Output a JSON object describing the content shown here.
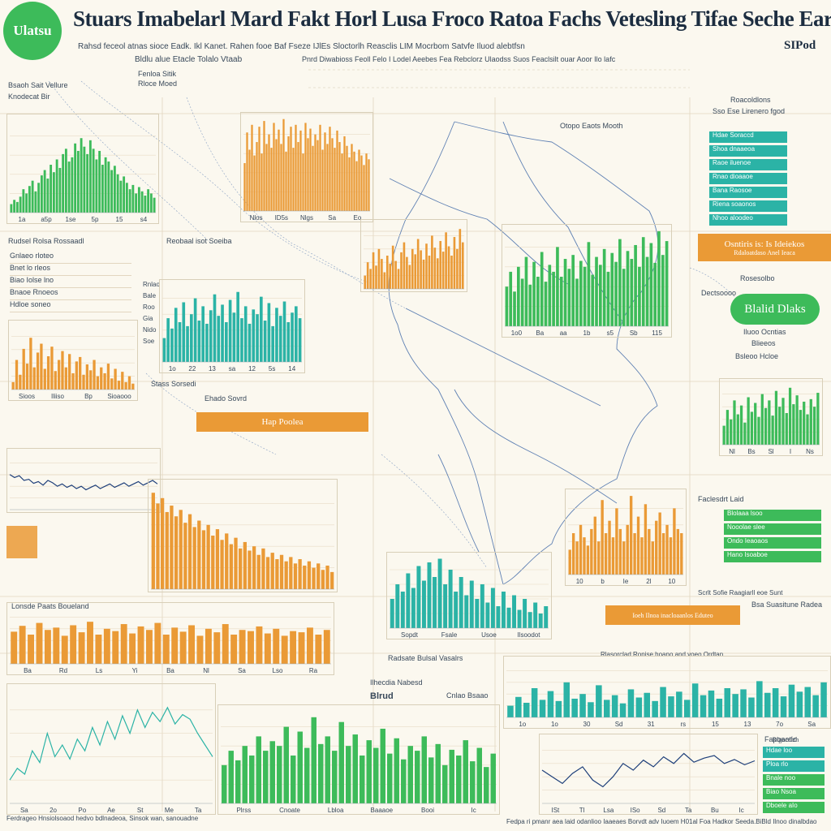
{
  "header": {
    "logo_text": "Ulatsu",
    "title": "Stuars Imabelarl Mard Fakt Horl Lusa Froco Ratoa Fachs Vetesling Tifae Seche Earlioe",
    "top_right": "SIPod",
    "subtitle_1": "Rahsd feceol atnas sioce Eadk. Ikl Kanet. Rahen fooe Baf Fseze IJlEs Sloctorlh Reasclis LIM Mocrbom Satvfe Iluod alebtfsn",
    "subtitle_2": "Bldlu alue Etacle Tolalo Vtaab",
    "subtitle_3": "Pnrd Diwabioss Feoll Felo I Lodel Aeebes Fea Rebclorz Ulaodss Suos Feaclsilt ouar Aoor Ilo lafc"
  },
  "annotations": {
    "left_header_1": "Fenloa Sitik",
    "left_header_2": "Rloce Moed",
    "left_label_1": "Bsaoh Sait Vellure",
    "left_label_2": "Knodecat Bir",
    "mid_label_1": "Rudsel Rolsa Rossaadl",
    "mid_label_2": "Reobaal isot Soeiba",
    "mid_label_3": "Stass Sorsedi",
    "mid_label_4": "Ehado Sovrd",
    "mid_label_5": "Lonsde Paats Boueland",
    "bottom_label_1": "Radsate Bulsal Vasalrs",
    "bottom_label_2": "Ilhecdia Nabesd",
    "bottom_label_3": "Blrud",
    "bottom_label_4": "Cnlao Bsaao",
    "map_label": "Otopo Eaots Mooth",
    "right_label_1": "Roacoldlons",
    "right_label_2": "Sso Ese Lirenero fgod",
    "right_label_3": "Dectsoooo",
    "right_label_4": "Rosesolbo",
    "right_label_5": "Bsleoo Hcloe",
    "right_label_6": "Blieeos",
    "right_label_7": "Faclesdrt Laid",
    "right_label_8": "Scrlt Sofie Raagiarll eoe Sunt",
    "right_label_9": "Bsa Suasitune Radea",
    "right_label_10": "Rlasorclad Ronise hoano and voeo Ordtan",
    "right_label_11": "Fapoaotio",
    "footer_1": "Ferdrageo Hnsiolsoaod hedvo bdlnadeoa, Sinsok wan, sanouadne",
    "footer_2": "Fedpa ri pmanr aea laid odanlioo Iaaeaes Borvdt adv Iuoem H01al Foa Hadkor Seeda.BiBld Ilnoo dinalbdao"
  },
  "pills": {
    "hap_label": "Hap Poolea",
    "orange_right": "Osntiris is: Is Ideiekos",
    "orange_right_sub": "Rdaloatdaso Anel Ieaca",
    "green_right": "Blalid Dlaks",
    "green_right_sub": "Iluoo Ocntias",
    "orange_bottom": "Ioeh Ilnoa inacloaanlos Eduteo",
    "teal_bottom_right": "Rlgoeelzh"
  },
  "legends": {
    "teal_top": [
      "Hdae Soraccd",
      "Shoa dnaaeoa",
      "Raoe iluenoe",
      "Rnao dioaaoe",
      "Bana Raosoe",
      "Riena soaonos",
      "Nhoo aloodeo"
    ],
    "green_mid": [
      "Blolaaa lsoo",
      "Nooolae slee",
      "Ondo Ieaoaos",
      "Hano Isoaboe"
    ],
    "teal_bottom": [
      "Hdae loo",
      "Ploa rlo",
      "Bnale noo",
      "Biao Nsoa",
      "Dboele aIo"
    ],
    "left_list": [
      "Gnlaeo rloteo",
      "Bnet lo rleos",
      "Biao Iolse lno",
      "Bnaoe Rnoeos",
      "Hdloe soneo"
    ],
    "mini_list": [
      "Rnlao",
      "Bale",
      "Roo",
      "Gia",
      "Nido",
      "Soe"
    ]
  },
  "colors": {
    "green": "#3dbb5a",
    "orange": "#ea9a36",
    "teal": "#2bb3a6",
    "navy": "#1e3f7a",
    "grid": "#e8dcc6"
  },
  "chart_data": [
    {
      "id": "c1",
      "type": "bar",
      "color": "#3dbb5a",
      "title": "",
      "values": [
        8,
        12,
        10,
        15,
        22,
        18,
        25,
        30,
        20,
        28,
        35,
        40,
        32,
        45,
        38,
        50,
        42,
        55,
        60,
        48,
        52,
        65,
        58,
        70,
        62,
        55,
        68,
        60,
        50,
        58,
        45,
        52,
        48,
        40,
        44,
        36,
        30,
        34,
        28,
        22,
        26,
        18,
        24,
        20,
        16,
        22,
        18,
        14
      ],
      "xticks": [
        "1a",
        "a5p",
        "1se",
        "5p",
        "15",
        "s4"
      ],
      "ylim": [
        0,
        90
      ]
    },
    {
      "id": "c2",
      "type": "bar",
      "color": "#ea9a36",
      "title": "",
      "values": [
        50,
        82,
        64,
        90,
        58,
        72,
        88,
        60,
        94,
        70,
        80,
        66,
        92,
        75,
        85,
        70,
        96,
        62,
        78,
        88,
        66,
        90,
        72,
        84,
        60,
        92,
        76,
        86,
        68,
        80,
        74,
        90,
        64,
        82,
        70,
        88,
        76,
        66,
        84,
        72,
        60,
        78,
        68,
        56,
        70,
        62,
        52,
        64,
        58,
        48,
        60,
        54
      ],
      "xticks": [
        "Nlos",
        "ID5s",
        "Nlgs",
        "Sa",
        "Eo"
      ],
      "ylim": [
        0,
        100
      ]
    },
    {
      "id": "c3",
      "type": "bar",
      "color": "#ea9a36",
      "title": "",
      "values": [
        20,
        40,
        30,
        55,
        35,
        60,
        45,
        25,
        50,
        38,
        65,
        42,
        30,
        55,
        70,
        48,
        36,
        60,
        52,
        75,
        58,
        44,
        68,
        50,
        80,
        62,
        46,
        72,
        56,
        85,
        64,
        50,
        78,
        60,
        90,
        70
      ],
      "xticks": [],
      "ylim": [
        0,
        100
      ]
    },
    {
      "id": "c4",
      "type": "bar",
      "color": "#3dbb5a",
      "title": "",
      "values": [
        40,
        55,
        35,
        60,
        48,
        70,
        42,
        65,
        50,
        75,
        45,
        62,
        55,
        80,
        50,
        68,
        58,
        72,
        48,
        66,
        60,
        85,
        52,
        70,
        62,
        78,
        55,
        74,
        65,
        88,
        58,
        76,
        68,
        82,
        60,
        90,
        70,
        84,
        64,
        96,
        72,
        86
      ],
      "xticks": [
        "1o0",
        "Ba",
        "aa",
        "1b",
        "s5",
        "Sb",
        "115"
      ],
      "ylim": [
        0,
        100
      ]
    },
    {
      "id": "c5",
      "type": "bar",
      "color": "#2bb3a6",
      "title": "",
      "values": [
        30,
        55,
        42,
        68,
        50,
        75,
        45,
        60,
        80,
        52,
        70,
        48,
        65,
        85,
        58,
        72,
        50,
        78,
        62,
        88,
        55,
        70,
        48,
        66,
        60,
        82,
        52,
        74,
        45,
        68,
        58,
        76,
        50,
        62,
        70,
        55
      ],
      "xticks": [
        "1o",
        "22",
        "13",
        "sa",
        "12",
        "5s",
        "14"
      ],
      "ylim": [
        0,
        100
      ]
    },
    {
      "id": "c6",
      "type": "bar",
      "color": "#ea9a36",
      "title": "",
      "values": [
        10,
        40,
        20,
        55,
        35,
        70,
        30,
        50,
        62,
        28,
        45,
        58,
        25,
        40,
        52,
        30,
        48,
        22,
        38,
        44,
        20,
        34,
        26,
        40,
        18,
        30,
        22,
        35,
        15,
        28,
        12,
        24,
        10,
        18,
        8
      ],
      "xticks": [
        "Sioos",
        "Iliiso",
        "Bp",
        "Sioaooo"
      ],
      "ylim": [
        0,
        90
      ]
    },
    {
      "id": "c7",
      "type": "bar",
      "color": "#3dbb5a",
      "title": "",
      "values": [
        30,
        55,
        40,
        70,
        48,
        62,
        35,
        75,
        52,
        66,
        44,
        80,
        58,
        70,
        46,
        85,
        60,
        74,
        50,
        90,
        64,
        78,
        55,
        68,
        48,
        72,
        60,
        82
      ],
      "xticks": [
        "Nl",
        "Bs",
        "Sl",
        "I",
        "Ns"
      ],
      "ylim": [
        0,
        100
      ]
    },
    {
      "id": "c8",
      "type": "line",
      "color": "#1e3f7a",
      "title": "",
      "values": [
        60,
        55,
        58,
        50,
        52,
        45,
        48,
        42,
        50,
        46,
        40,
        44,
        38,
        42,
        36,
        40,
        34,
        38,
        42,
        36,
        40,
        44,
        38,
        42,
        46,
        40,
        44,
        48,
        42,
        46,
        50,
        44
      ],
      "xticks": [],
      "ylim": [
        0,
        100
      ]
    },
    {
      "id": "c9",
      "type": "bar",
      "color": "#ea9a36",
      "title": "",
      "values": [
        90,
        80,
        85,
        72,
        78,
        68,
        74,
        62,
        70,
        58,
        64,
        55,
        60,
        50,
        56,
        46,
        52,
        42,
        48,
        38,
        44,
        36,
        40,
        32,
        38,
        30,
        34,
        28,
        32,
        26,
        30,
        24,
        28,
        22,
        26,
        20,
        24,
        18,
        22,
        16
      ],
      "xticks": [],
      "ylim": [
        0,
        100
      ]
    },
    {
      "id": "c10",
      "type": "bar",
      "color": "#ea9a36",
      "title": "",
      "values": [
        30,
        50,
        40,
        60,
        45,
        35,
        55,
        70,
        40,
        90,
        50,
        65,
        45,
        80,
        55,
        40,
        60,
        95,
        50,
        70,
        45,
        85,
        55,
        40,
        65,
        75,
        50,
        60,
        45,
        80,
        55,
        50
      ],
      "xticks": [
        "10",
        "b",
        "Ie",
        "2l",
        "10"
      ],
      "ylim": [
        0,
        100
      ]
    },
    {
      "id": "c11",
      "type": "bar",
      "color": "#2bb3a6",
      "title": "",
      "values": [
        40,
        60,
        50,
        75,
        55,
        85,
        65,
        90,
        70,
        95,
        60,
        80,
        50,
        70,
        45,
        65,
        40,
        60,
        35,
        55,
        30,
        50,
        28,
        45,
        25,
        40,
        22,
        35,
        20,
        30
      ],
      "xticks": [
        "Sopdt",
        "Fsale",
        "Usoe",
        "Ilsoodot"
      ],
      "ylim": [
        0,
        100
      ]
    },
    {
      "id": "c12",
      "type": "bar",
      "color": "#ea9a36",
      "title": "",
      "values": [
        55,
        65,
        50,
        70,
        58,
        62,
        48,
        66,
        54,
        72,
        50,
        60,
        56,
        68,
        52,
        64,
        58,
        70,
        50,
        62,
        55,
        66,
        48,
        60,
        54,
        68,
        50,
        58,
        56,
        64,
        52,
        60,
        48,
        56,
        54,
        62,
        50,
        58
      ],
      "xticks": [
        "Ba",
        "Rd",
        "Ls",
        "Yi",
        "Ba",
        "Nl",
        "Sa",
        "Lso",
        "Ra"
      ],
      "ylim": [
        0,
        100
      ]
    },
    {
      "id": "c13",
      "type": "bar",
      "color": "#2bb3a6",
      "title": "",
      "values": [
        20,
        35,
        25,
        50,
        30,
        45,
        28,
        60,
        32,
        40,
        26,
        55,
        30,
        38,
        24,
        48,
        34,
        42,
        28,
        52,
        36,
        44,
        30,
        58,
        38,
        46,
        32,
        50,
        40,
        48,
        34,
        62,
        42,
        50,
        36,
        56,
        44,
        52,
        38,
        60
      ],
      "xticks": [
        "1o",
        "1o",
        "30",
        "Sd",
        "31",
        "rs",
        "15",
        "13",
        "7o",
        "Sa"
      ],
      "ylim": [
        0,
        100
      ]
    },
    {
      "id": "c14",
      "type": "bar",
      "color": "#3dbb5a",
      "title": "",
      "values": [
        40,
        55,
        45,
        60,
        50,
        70,
        55,
        65,
        60,
        80,
        50,
        75,
        58,
        90,
        62,
        70,
        55,
        85,
        60,
        72,
        50,
        66,
        58,
        78,
        52,
        68,
        46,
        60,
        55,
        70,
        48,
        62,
        40,
        56,
        50,
        66,
        44,
        58,
        38,
        52
      ],
      "xticks": [
        "Plrss",
        "Cnoate",
        "Lbloa",
        "Baaaoe",
        "Booi",
        "Ic"
      ],
      "ylim": [
        0,
        100
      ]
    },
    {
      "id": "c15",
      "type": "line",
      "color": "#2bb3a6",
      "title": "",
      "values": [
        20,
        30,
        25,
        45,
        35,
        60,
        40,
        50,
        38,
        55,
        45,
        65,
        50,
        70,
        55,
        75,
        60,
        80,
        65,
        78,
        70,
        82,
        68,
        76,
        72,
        60,
        50,
        40
      ],
      "xticks": [
        "Sa",
        "2o",
        "Po",
        "Ae",
        "St",
        "Me",
        "Ta"
      ],
      "ylim": [
        0,
        100
      ]
    },
    {
      "id": "c16",
      "type": "line",
      "color": "#1e3f7a",
      "title": "",
      "values": [
        50,
        40,
        30,
        45,
        55,
        35,
        25,
        40,
        60,
        50,
        65,
        55,
        70,
        60,
        75,
        62,
        68,
        72,
        60,
        66,
        58,
        64
      ],
      "xticks": [
        "ISt",
        "Tl",
        "Lsa",
        "ISo",
        "Sd",
        "Ta",
        "Bu",
        "Ic"
      ],
      "ylim": [
        0,
        100
      ]
    }
  ]
}
